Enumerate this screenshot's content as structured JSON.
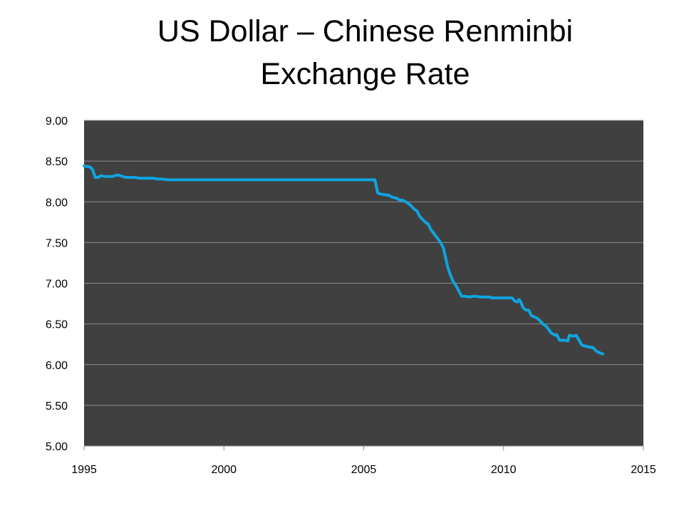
{
  "slide": {
    "title_line1": "US Dollar – Chinese Renminbi",
    "title_line2": "Exchange Rate"
  },
  "colors": {
    "plot_background": "#404040",
    "gridline": "#8c8c8c",
    "series": "#0ea5e0",
    "axis": "#8c8c8c"
  },
  "chart_data": {
    "type": "line",
    "title": "US Dollar – Chinese Renminbi Exchange Rate",
    "xlabel": "",
    "ylabel": "",
    "xlim": [
      1995,
      2015
    ],
    "ylim": [
      5.0,
      9.0
    ],
    "x_ticks": [
      1995,
      2000,
      2005,
      2010,
      2015
    ],
    "x_tick_labels": [
      "1995",
      "2000",
      "2005",
      "2010",
      "2015"
    ],
    "y_ticks": [
      5.0,
      5.5,
      6.0,
      6.5,
      7.0,
      7.5,
      8.0,
      8.5,
      9.0
    ],
    "y_tick_labels": [
      "5.00",
      "5.50",
      "6.00",
      "6.50",
      "7.00",
      "7.50",
      "8.00",
      "8.50",
      "9.00"
    ],
    "grid": "horizontal",
    "legend": "none",
    "series": [
      {
        "x": [
          1995.0,
          1995.2,
          1995.3,
          1995.4,
          1995.5,
          1995.6,
          1995.8,
          1996.0,
          1996.2,
          1996.3,
          1996.5,
          1996.8,
          1997.0,
          1997.3,
          1997.5,
          1997.6,
          1997.8,
          1998.0,
          1998.5,
          1999.0,
          2000.0,
          2001.0,
          2002.0,
          2003.0,
          2004.0,
          2005.0,
          2005.4,
          2005.5,
          2005.55,
          2005.7,
          2005.9,
          2006.0,
          2006.2,
          2006.3,
          2006.4,
          2006.6,
          2006.7,
          2006.8,
          2006.9,
          2007.0,
          2007.2,
          2007.3,
          2007.4,
          2007.6,
          2007.75,
          2007.85,
          2008.0,
          2008.1,
          2008.2,
          2008.3,
          2008.5,
          2008.6,
          2008.8,
          2008.9,
          2009.0,
          2009.2,
          2009.3,
          2009.5,
          2009.6,
          2009.8,
          2010.0,
          2010.3,
          2010.4,
          2010.5,
          2010.55,
          2010.6,
          2010.7,
          2010.8,
          2010.9,
          2011.0,
          2011.2,
          2011.3,
          2011.4,
          2011.5,
          2011.6,
          2011.7,
          2011.75,
          2011.85,
          2011.9,
          2012.0,
          2012.1,
          2012.2,
          2012.3,
          2012.35,
          2012.5,
          2012.6,
          2012.7,
          2012.8,
          2013.0,
          2013.2,
          2013.3,
          2013.4,
          2013.55
        ],
        "values": [
          8.44,
          8.43,
          8.4,
          8.3,
          8.3,
          8.32,
          8.31,
          8.31,
          8.33,
          8.32,
          8.3,
          8.3,
          8.29,
          8.29,
          8.29,
          8.28,
          8.28,
          8.27,
          8.27,
          8.27,
          8.27,
          8.27,
          8.27,
          8.27,
          8.27,
          8.27,
          8.27,
          8.11,
          8.1,
          8.09,
          8.08,
          8.06,
          8.04,
          8.02,
          8.02,
          7.98,
          7.95,
          7.91,
          7.89,
          7.82,
          7.75,
          7.73,
          7.66,
          7.57,
          7.5,
          7.43,
          7.2,
          7.1,
          7.02,
          6.97,
          6.84,
          6.84,
          6.83,
          6.84,
          6.84,
          6.83,
          6.83,
          6.83,
          6.82,
          6.82,
          6.82,
          6.82,
          6.78,
          6.77,
          6.8,
          6.78,
          6.7,
          6.67,
          6.67,
          6.6,
          6.57,
          6.54,
          6.5,
          6.48,
          6.44,
          6.39,
          6.38,
          6.36,
          6.37,
          6.3,
          6.3,
          6.3,
          6.29,
          6.36,
          6.35,
          6.36,
          6.3,
          6.24,
          6.22,
          6.21,
          6.17,
          6.15,
          6.13
        ]
      }
    ]
  }
}
